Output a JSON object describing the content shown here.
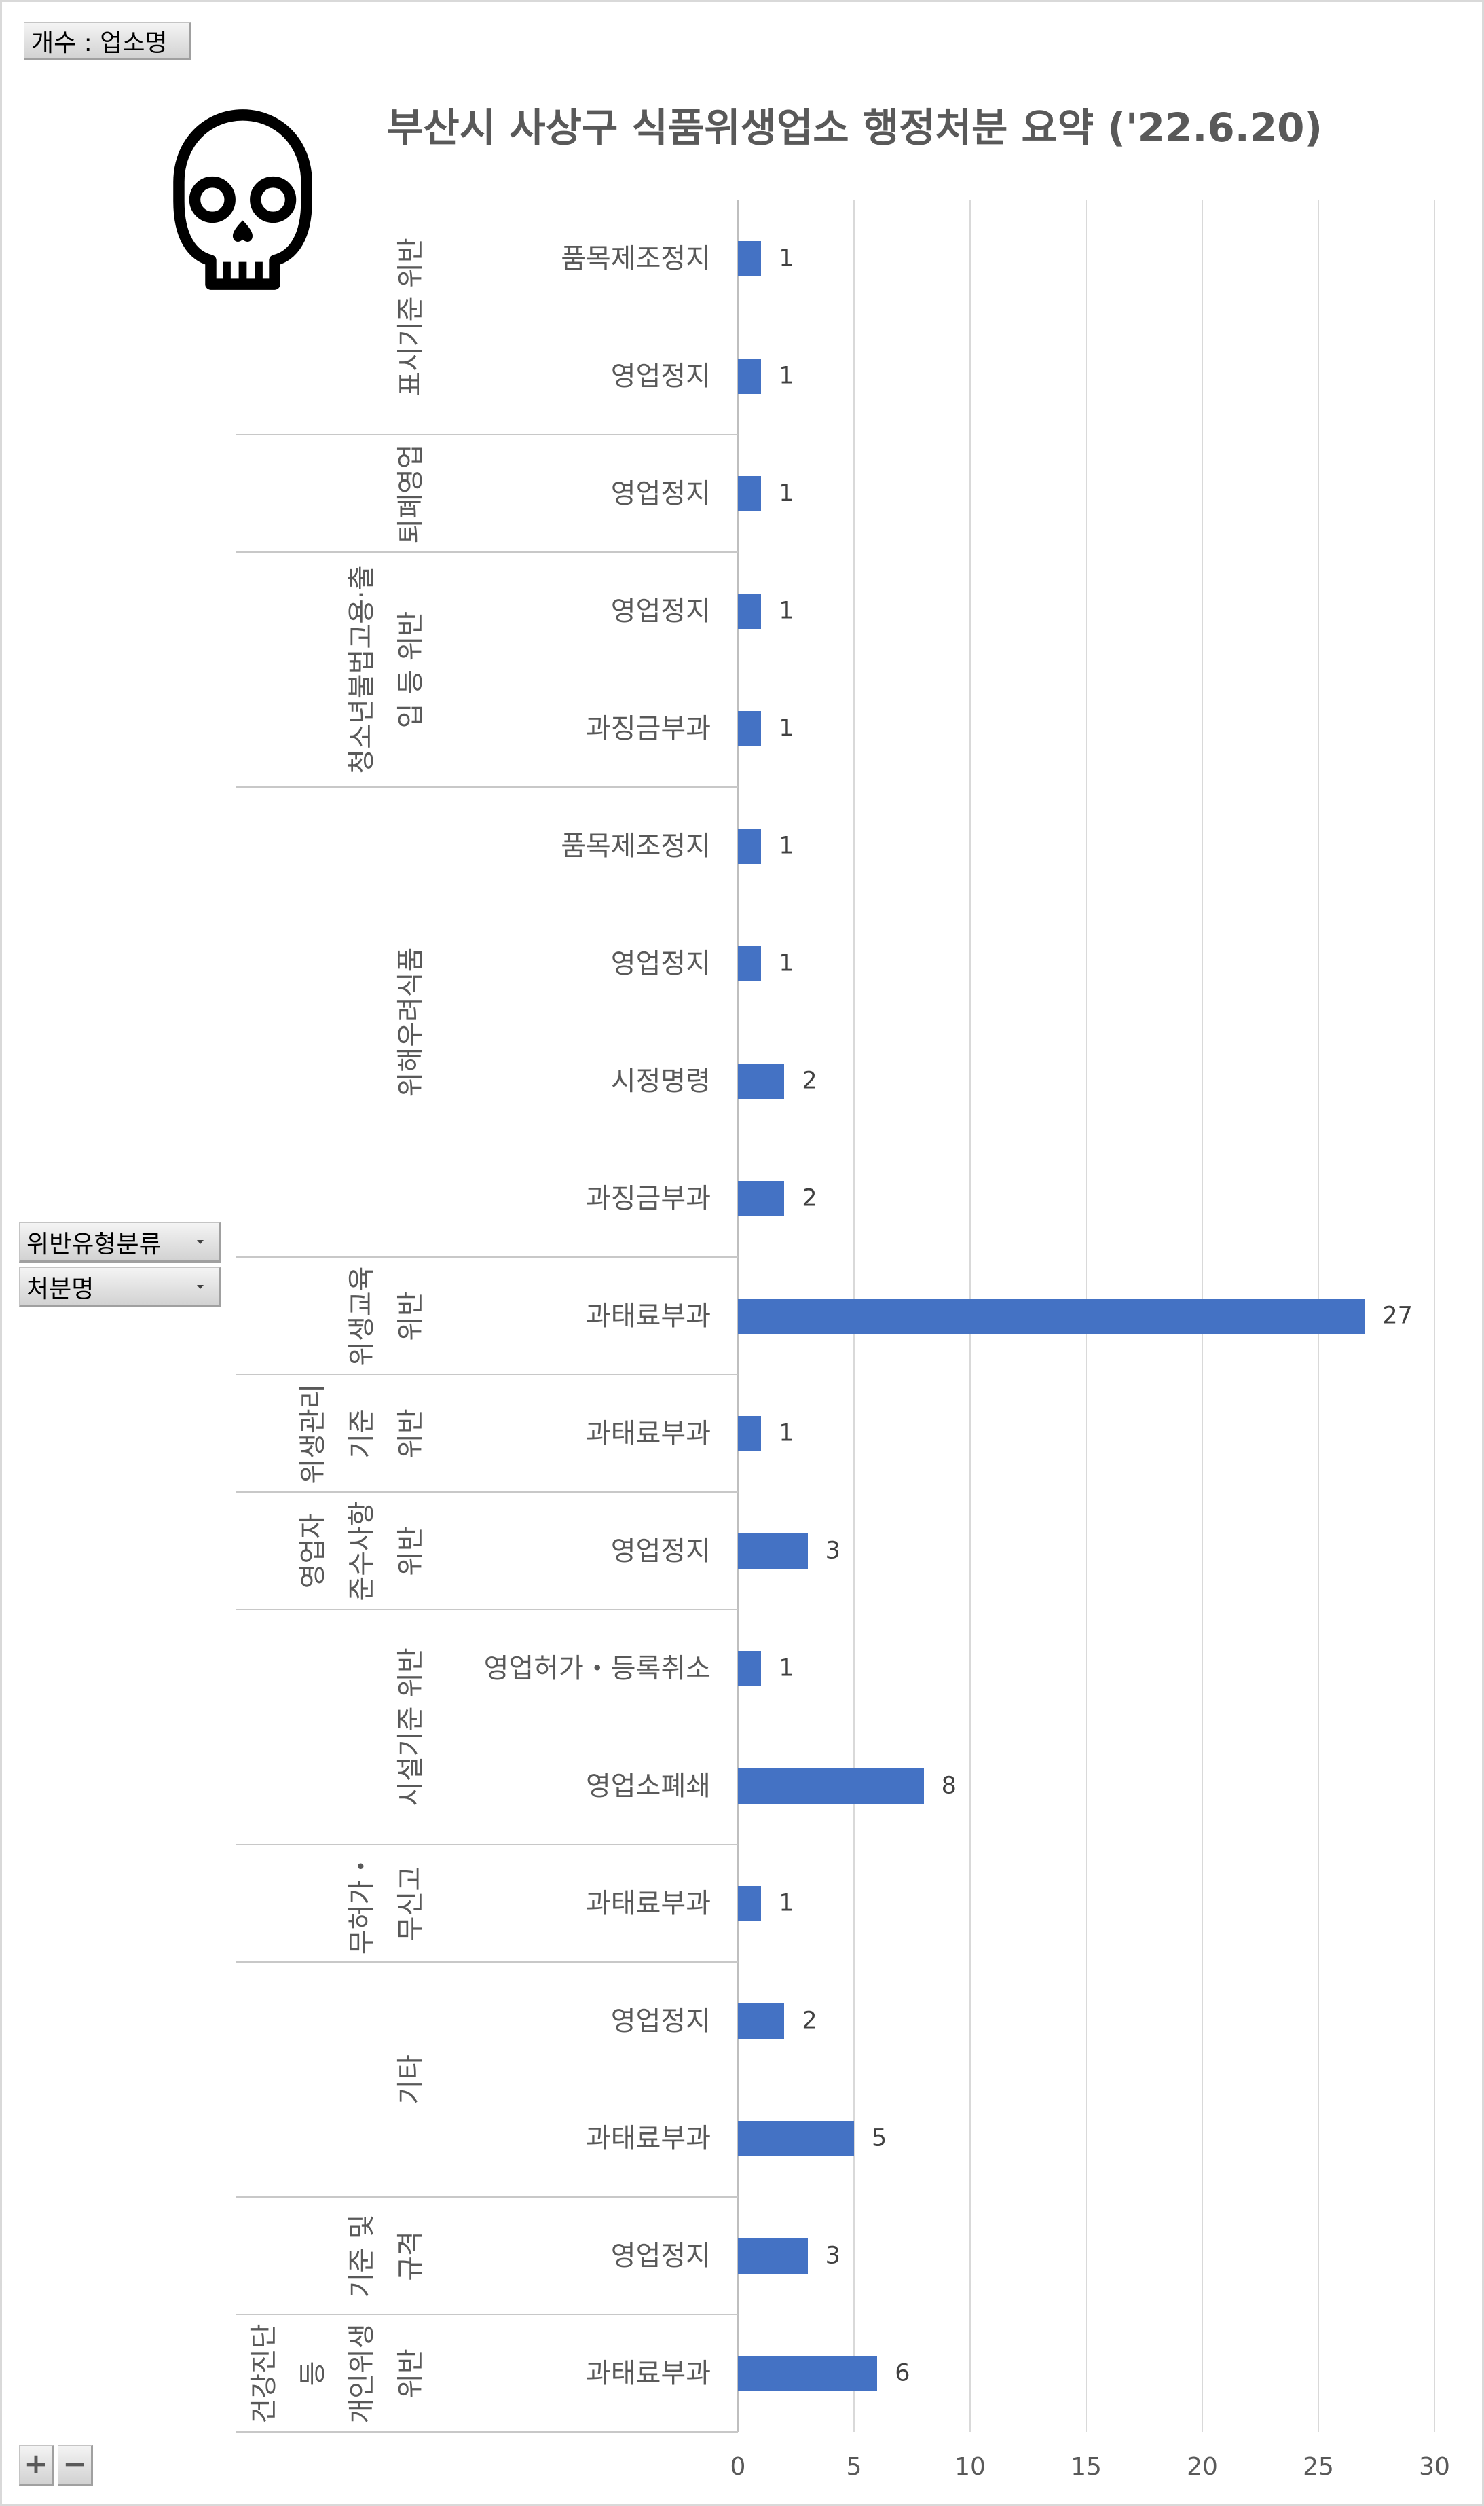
{
  "pivot": {
    "value_field_button": "개수 : 업소명",
    "row_field_buttons": [
      {
        "label": "위반유형분류",
        "icon": "dropdown-arrow-icon"
      },
      {
        "label": "처분명",
        "icon": "dropdown-arrow-icon"
      }
    ],
    "expand_label": "+",
    "collapse_label": "−"
  },
  "decoration_icon": "skull-icon",
  "chart_data": {
    "type": "bar",
    "orientation": "horizontal",
    "title": "부산시 사상구 식품위생업소 행정처분 요약 ('22.6.20)",
    "xlim": [
      0,
      30
    ],
    "xticks": [
      0,
      5,
      10,
      15,
      20,
      25,
      30
    ],
    "grid": true,
    "legend": "none",
    "bar_color": "#4472C4",
    "groups": [
      {
        "label_lines": [
          "표시기준 위반"
        ],
        "categories": [
          "품목제조정지",
          "영업정지"
        ],
        "values": [
          1,
          1
        ]
      },
      {
        "label_lines": [
          "퇴폐영업"
        ],
        "categories": [
          "영업정지"
        ],
        "values": [
          1
        ]
      },
      {
        "label_lines": [
          "청소년불법고용·출",
          "입 등 위반"
        ],
        "categories": [
          "영업정지",
          "과징금부과"
        ],
        "values": [
          1,
          1
        ]
      },
      {
        "label_lines": [
          "위해우려식품"
        ],
        "categories": [
          "품목제조정지",
          "영업정지",
          "시정명령",
          "과징금부과"
        ],
        "values": [
          1,
          1,
          2,
          2
        ]
      },
      {
        "label_lines": [
          "위생교육",
          "위반"
        ],
        "categories": [
          "과태료부과"
        ],
        "values": [
          27
        ]
      },
      {
        "label_lines": [
          "위생관리",
          "기준",
          "위반"
        ],
        "categories": [
          "과태료부과"
        ],
        "values": [
          1
        ]
      },
      {
        "label_lines": [
          "영업자",
          "준수사항",
          "위반"
        ],
        "categories": [
          "영업정지"
        ],
        "values": [
          3
        ]
      },
      {
        "label_lines": [
          "시설기준 위반"
        ],
        "categories": [
          "영업허가・등록취소",
          "영업소폐쇄"
        ],
        "values": [
          1,
          8
        ]
      },
      {
        "label_lines": [
          "무허가・",
          "무신고"
        ],
        "categories": [
          "과태료부과"
        ],
        "values": [
          1
        ]
      },
      {
        "label_lines": [
          "기타"
        ],
        "categories": [
          "영업정지",
          "과태료부과"
        ],
        "values": [
          2,
          5
        ]
      },
      {
        "label_lines": [
          "기준 및",
          "규격"
        ],
        "categories": [
          "영업정지"
        ],
        "values": [
          3
        ]
      },
      {
        "label_lines": [
          "건강진단",
          "등",
          "개인위생",
          "위반"
        ],
        "categories": [
          "과태료부과"
        ],
        "values": [
          6
        ]
      }
    ]
  }
}
